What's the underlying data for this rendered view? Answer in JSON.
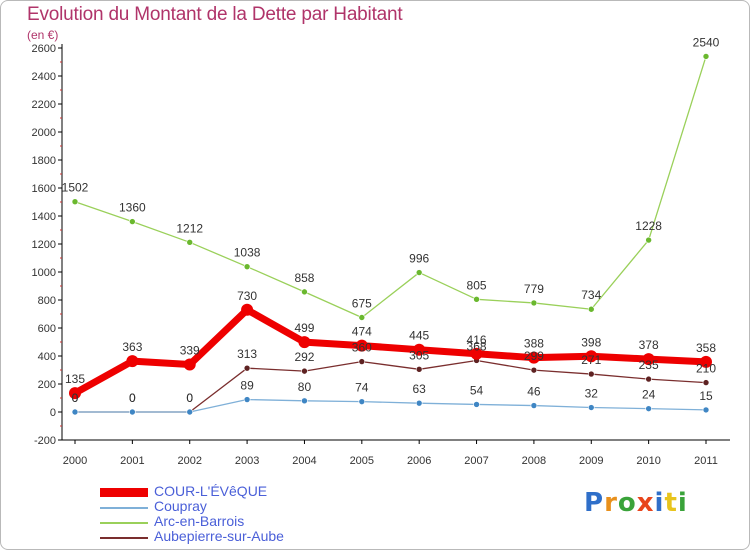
{
  "header": {
    "title": "Evolution du Montant de la Dette par Habitant",
    "subtitle": "(en €)"
  },
  "logo": {
    "text": "Proxiti",
    "colors": [
      "#2f6fc9",
      "#e8901c",
      "#3aa33a",
      "#e8451c",
      "#2f6fc9",
      "#e8c41c",
      "#3aa33a"
    ]
  },
  "chart_data": {
    "type": "line",
    "title": "Evolution du Montant de la Dette par Habitant",
    "ylabel": "(en €)",
    "xlabel": "",
    "x": [
      "2000",
      "2001",
      "2002",
      "2003",
      "2004",
      "2005",
      "2006",
      "2007",
      "2008",
      "2009",
      "2010",
      "2011"
    ],
    "ylim": [
      -200,
      2600
    ],
    "yticks": [
      -200,
      0,
      200,
      400,
      600,
      800,
      1000,
      1200,
      1400,
      1600,
      1800,
      2000,
      2200,
      2400,
      2600
    ],
    "grid": false,
    "legend_position": "bottom-left",
    "series": [
      {
        "name": "Arc-en-Barrois",
        "color": "#9ad05a",
        "marker": "#6ab82e",
        "width": 1.3,
        "values": [
          1502,
          1360,
          1212,
          1038,
          858,
          675,
          996,
          805,
          779,
          734,
          1228,
          2540
        ]
      },
      {
        "name": "Aubepierre-sur-Aube",
        "color": "#7a2e2e",
        "marker": "#5e2222",
        "width": 1.3,
        "values": [
          0,
          0,
          0,
          313,
          292,
          360,
          305,
          368,
          299,
          271,
          235,
          210
        ]
      },
      {
        "name": "Coupray",
        "color": "#7fb0d8",
        "marker": "#3f86c4",
        "width": 1.3,
        "values": [
          0,
          0,
          0,
          89,
          80,
          74,
          63,
          54,
          46,
          32,
          24,
          15
        ]
      },
      {
        "name": "COUR-L'ÉVêQUE",
        "color": "#ee0000",
        "marker": "#ee0000",
        "width": 7,
        "values": [
          135,
          363,
          339,
          730,
          499,
          474,
          445,
          416,
          388,
          398,
          378,
          358
        ]
      }
    ],
    "legend_order": [
      "COUR-L'ÉVêQUE",
      "Coupray",
      "Arc-en-Barrois",
      "Aubepierre-sur-Aube"
    ]
  }
}
